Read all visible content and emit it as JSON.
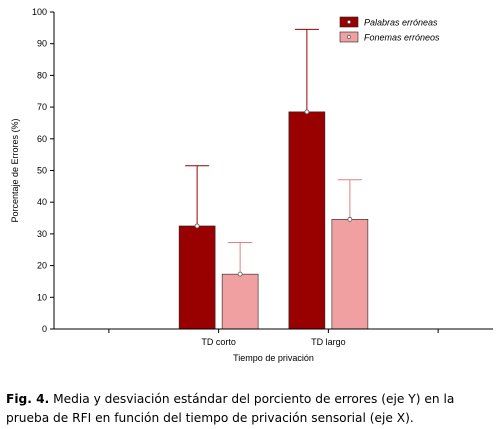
{
  "chart_data": {
    "type": "bar",
    "categories": [
      "TD corto",
      "TD largo"
    ],
    "series": [
      {
        "name": "Palabras erróneas",
        "values": [
          32.5,
          68.5
        ],
        "sd": [
          19,
          26
        ]
      },
      {
        "name": "Fonemas erróneos",
        "values": [
          17.3,
          34.6
        ],
        "sd": [
          10,
          12.5
        ]
      }
    ],
    "xlabel": "Tiempo de privación",
    "ylabel": "Porcentaje de Errores (%)",
    "ylim": [
      0,
      100
    ],
    "yticks": [
      0,
      10,
      20,
      30,
      40,
      50,
      60,
      70,
      80,
      90,
      100
    ],
    "legend_position": "top-right",
    "grid": false,
    "colors": {
      "Palabras erróneas": "#990000",
      "Fonemas erróneos": "#f0a0a0"
    }
  },
  "caption": {
    "label": "Fig. 4.",
    "text": "Media y desviación estándar del porciento de errores (eje Y) en la prueba de RFI en función del tiempo de privación sensorial (eje X)."
  }
}
